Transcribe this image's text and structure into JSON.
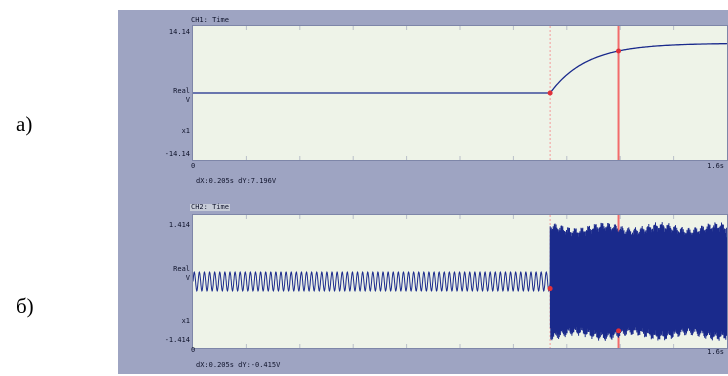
{
  "labels": {
    "a": "а)",
    "b": "б)"
  },
  "colors": {
    "trace": "#1a2a8c",
    "cursor": "#f26b6b",
    "cursor_dash": "#f59a9a",
    "marker": "#e0303a"
  },
  "panels": [
    {
      "title": "CH1: Time",
      "title_selected": false,
      "y_top": "14.14",
      "y_bottom": "-14.14",
      "y_mid1": "Real",
      "y_mid2": "V",
      "y_scale": "x1",
      "x_start": "0",
      "x_end": "1.6s",
      "readout": "dX:0.205s dY:7.196V"
    },
    {
      "title": "CH2: Time",
      "title_selected": true,
      "y_top": "1.414",
      "y_bottom": "-1.414",
      "y_mid1": "Real",
      "y_mid2": "V",
      "y_scale": "x1",
      "x_start": "0",
      "x_end": "1.6s",
      "readout": "dX:0.205s dY:-0.415V"
    }
  ],
  "chart_data": [
    {
      "type": "line",
      "title": "CH1: Time",
      "xlim": [
        0,
        1.6
      ],
      "ylim": [
        -14.14,
        14.14
      ],
      "xlabel": "",
      "ylabel": "",
      "series": [
        {
          "x": [
            0,
            1.07,
            1.1,
            1.15,
            1.2,
            1.27,
            1.35,
            1.45,
            1.6
          ],
          "y": [
            0,
            0,
            2.5,
            5.2,
            7.0,
            8.6,
            9.7,
            10.3,
            10.5
          ]
        }
      ],
      "cursors": [
        {
          "x": 1.07,
          "style": "dashed"
        },
        {
          "x": 1.275,
          "style": "solid"
        }
      ]
    },
    {
      "type": "line",
      "title": "CH2: Time",
      "xlim": [
        0,
        1.6
      ],
      "ylim": [
        -1.414,
        1.414
      ],
      "xlabel": "",
      "ylabel": "",
      "series": [
        {
          "description_points": {
            "x": [
              0,
              1.07,
              1.07,
              1.6
            ]
          },
          "amplitude_before": 0.2,
          "amplitude_after": 1.15
        }
      ],
      "cursors": [
        {
          "x": 1.07,
          "style": "dashed"
        },
        {
          "x": 1.275,
          "style": "solid"
        }
      ]
    }
  ]
}
